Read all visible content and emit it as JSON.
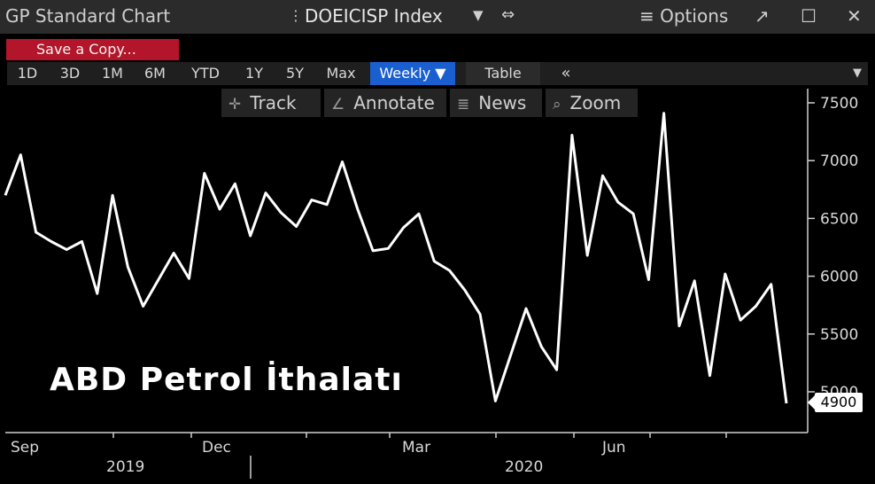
{
  "titlebar": {
    "app_title": "GP Standard Chart",
    "ticker_menu": "⋮",
    "ticker": "DOEICISP Index",
    "dropdown": "▼",
    "link_icon": "⇔",
    "options_label": "≡ Options",
    "popout_icon": "↗",
    "maximize_icon": "☐",
    "close_icon": "✕"
  },
  "save_copy_label": "Save a Copy...",
  "ranges": [
    "1D",
    "3D",
    "1M",
    "6M",
    "YTD",
    "1Y",
    "5Y",
    "Max"
  ],
  "frequency_label": "Weekly ▼",
  "table_label": "Table",
  "collapse_label": "«",
  "right_menu": "▼",
  "tools": {
    "track": "Track",
    "annotate": "Annotate",
    "news": "News",
    "zoom": "Zoom",
    "track_icon": "✛",
    "annotate_icon": "∠",
    "news_icon": "≣",
    "zoom_icon": "⌕"
  },
  "chart_data": {
    "type": "line",
    "title": "ABD Petrol İthalatı",
    "series": [
      {
        "values": [
          6700,
          7050,
          6380,
          6300,
          6230,
          6300,
          5850,
          6700,
          6080,
          5740,
          5970,
          6200,
          5980,
          6890,
          6580,
          6800,
          6350,
          6720,
          6550,
          6430,
          6660,
          6620,
          6990,
          6580,
          6220,
          6240,
          6420,
          6540,
          6130,
          6050,
          5880,
          5670,
          4920,
          5320,
          5720,
          5390,
          5190,
          7220,
          6180,
          6870,
          6640,
          6540,
          5970,
          7410,
          5570,
          5960,
          5140,
          6020,
          5620,
          5740,
          5930,
          4900
        ]
      }
    ],
    "y_ticks": [
      "7500",
      "7000",
      "6500",
      "6000",
      "5500",
      "5000"
    ],
    "y_range": [
      4750,
      7600
    ],
    "x_month_labels": [
      "Sep",
      "Dec",
      "Mar",
      "Jun"
    ],
    "x_year_labels": [
      "2019",
      "2020"
    ],
    "last_value_label": "4900",
    "line_color": "#ffffff",
    "background": "#000000"
  }
}
